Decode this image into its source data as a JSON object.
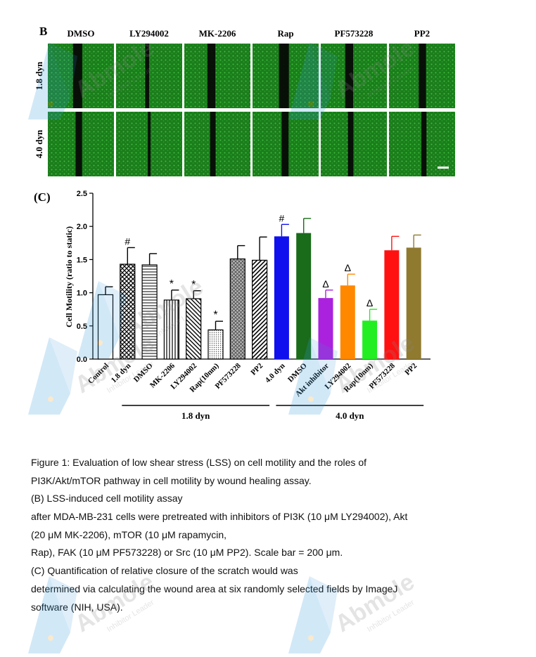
{
  "panel_b": {
    "label": "B",
    "columns": [
      "DMSO",
      "LY294002",
      "MK-2206",
      "Rap",
      "PF573228",
      "PP2"
    ],
    "rows": [
      "1.8 dyn",
      "4.0 dyn"
    ],
    "tile_color": "#1e8a1e",
    "gap_color": "#050505"
  },
  "chart_data": {
    "type": "bar",
    "panel_label": "(C)",
    "title": "",
    "ylabel": "Cell Motility (ratio to static)",
    "xlabel": "",
    "ylim": [
      0,
      2.5
    ],
    "yticks": [
      "0.0",
      "0.5",
      "1.0",
      "1.5",
      "2.0",
      "2.5"
    ],
    "grid": false,
    "categories": [
      "Control",
      "1.8 dyn",
      "DMSO",
      "MK-2206",
      "LY294002",
      "Rap(10nm)",
      "PF573228",
      "PP2",
      "4.0 dyn",
      "DMSO",
      "Akt inhibitor",
      "LY294002",
      "Rap(10nm)",
      "PF573228",
      "PP2"
    ],
    "values": [
      0.97,
      1.43,
      1.42,
      0.89,
      0.91,
      0.44,
      1.51,
      1.49,
      1.85,
      1.9,
      0.92,
      1.11,
      0.58,
      1.64,
      1.68
    ],
    "errors": [
      0.12,
      0.25,
      0.17,
      0.15,
      0.12,
      0.13,
      0.2,
      0.35,
      0.18,
      0.22,
      0.12,
      0.17,
      0.17,
      0.21,
      0.19
    ],
    "annotations": [
      "",
      "#",
      "",
      "*",
      "*",
      "*",
      "",
      "",
      "#",
      "",
      "Δ",
      "Δ",
      "Δ",
      "",
      ""
    ],
    "patterns": [
      "solid-white",
      "crosshatch",
      "horizontal",
      "vertical",
      "diagonal-back",
      "dots",
      "crosshatch-grey",
      "diagonal",
      "solid",
      "solid",
      "solid",
      "solid",
      "solid",
      "solid",
      "solid"
    ],
    "colors": [
      "#ffffff",
      "#ffffff",
      "#ffffff",
      "#ffffff",
      "#ffffff",
      "#ffffff",
      "#ffffff",
      "#ffffff",
      "#1010ee",
      "#1a6b1a",
      "#aa22dd",
      "#ff8800",
      "#22ee22",
      "#ff1111",
      "#8f7a30"
    ],
    "groups": [
      {
        "label": "1.8 dyn",
        "start": 1,
        "end": 7
      },
      {
        "label": "4.0 dyn",
        "start": 8,
        "end": 14
      }
    ]
  },
  "caption": {
    "lines": [
      "Figure 1: Evaluation of low shear stress (LSS) on cell motility and the roles of",
      "PI3K/Akt/mTOR pathway in cell motility by wound healing assay.",
      "(B) LSS-induced cell motility assay",
      " after MDA-MB-231 cells were pretreated with inhibitors of PI3K (10 μM LY294002), Akt",
      "(20 μM MK-2206), mTOR (10 μM rapamycin,",
      "Rap), FAK (10 μM PF573228) or Src (10 μM PP2). Scale bar = 200 μm.",
      "(C) Quantification of relative closure of the scratch would was",
      "determined via calculating the wound area at six randomly selected fields by ImageJ",
      "software (NIH, USA)."
    ]
  },
  "watermark": {
    "brand": "Abmole",
    "tagline": "Inhibitor Leader",
    "color": "#3399dd"
  }
}
